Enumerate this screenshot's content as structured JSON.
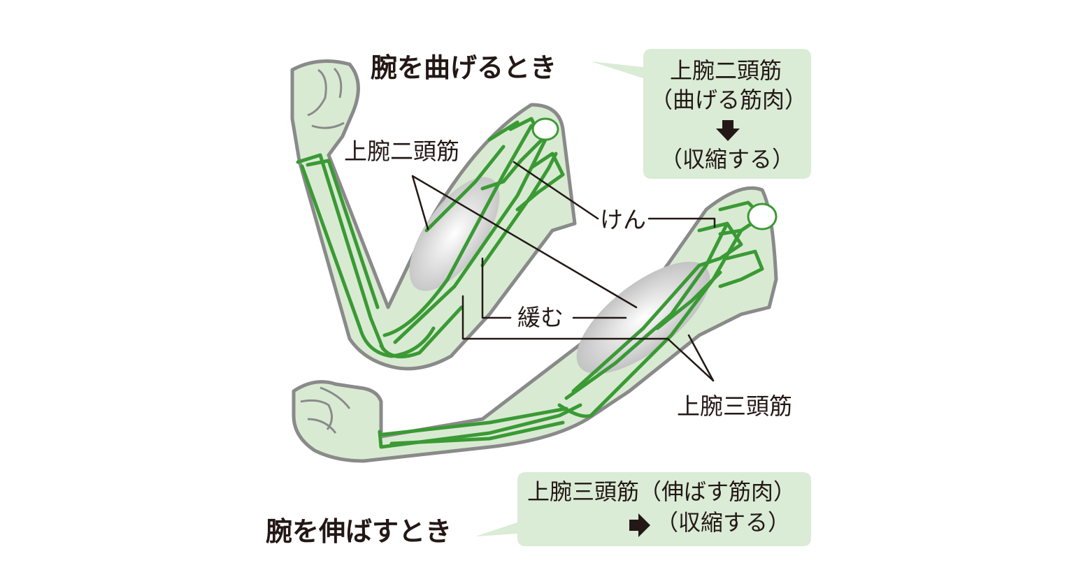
{
  "flexing": {
    "title": "腕を曲げるとき",
    "callout": {
      "line1": "上腕二頭筋",
      "line2": "（曲げる筋肉）",
      "arrow_icon": "arrow-down-icon",
      "line3": "（収縮する）"
    }
  },
  "extending": {
    "title": "腕を伸ばすとき",
    "callout": {
      "line1": "上腕三頭筋（伸ばす筋肉）",
      "arrow_icon": "arrow-right-icon",
      "line2": "（収縮する）"
    }
  },
  "labels": {
    "biceps": "上腕二頭筋",
    "tendon": "けん",
    "relaxes": "緩む",
    "triceps": "上腕三頭筋"
  },
  "colors": {
    "skin_fill": "#d9ead3",
    "callout_fill": "#daebd6",
    "outline": "#8a8a8a",
    "muscle_line": "#3a9a34",
    "leader_line": "#231815",
    "muscle_shade": "#c9c9c9"
  }
}
